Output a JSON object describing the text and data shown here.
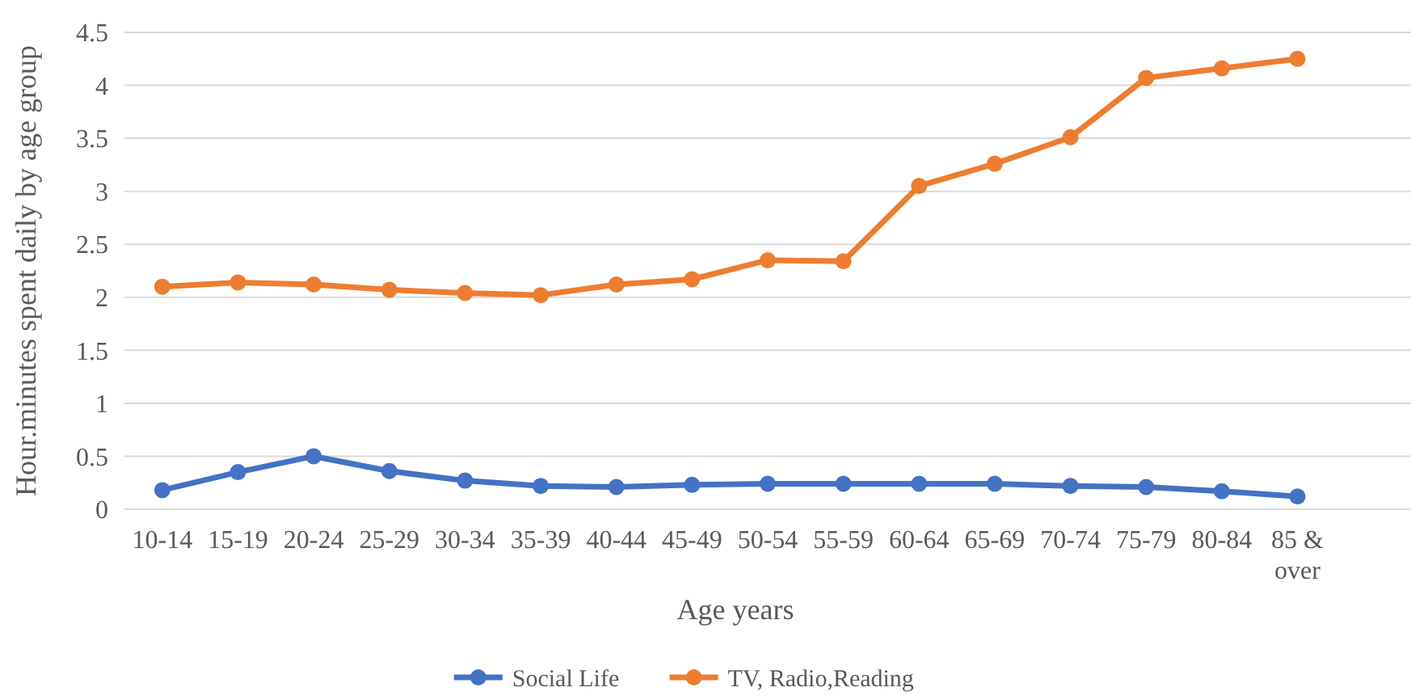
{
  "chart_data": {
    "type": "line",
    "xlabel": "Age years",
    "ylabel": "Hour.minutes spent daily by age group",
    "categories": [
      "10-14",
      "15-19",
      "20-24",
      "25-29",
      "30-34",
      "35-39",
      "40-44",
      "45-49",
      "50-54",
      "55-59",
      "60-64",
      "65-69",
      "70-74",
      "75-79",
      "80-84",
      "85 & over",
      null
    ],
    "series": [
      {
        "name": "Social Life",
        "color": "#4472c4",
        "values": [
          0.18,
          0.35,
          0.5,
          0.36,
          0.27,
          0.22,
          0.21,
          0.23,
          0.24,
          0.24,
          0.24,
          0.24,
          0.22,
          0.21,
          0.17,
          0.12,
          null
        ]
      },
      {
        "name": "TV, Radio,Reading",
        "color": "#ed7d31",
        "values": [
          2.1,
          2.14,
          2.12,
          2.07,
          2.04,
          2.02,
          2.12,
          2.17,
          2.35,
          2.34,
          3.05,
          3.26,
          3.51,
          4.07,
          4.16,
          4.25,
          null
        ]
      }
    ],
    "ylim": [
      0,
      4.5
    ],
    "yticks": [
      0,
      0.5,
      1,
      1.5,
      2,
      2.5,
      3,
      3.5,
      4,
      4.5
    ],
    "grid": "y",
    "legend": "bottom",
    "marker": "circle",
    "line_style": "solid"
  }
}
